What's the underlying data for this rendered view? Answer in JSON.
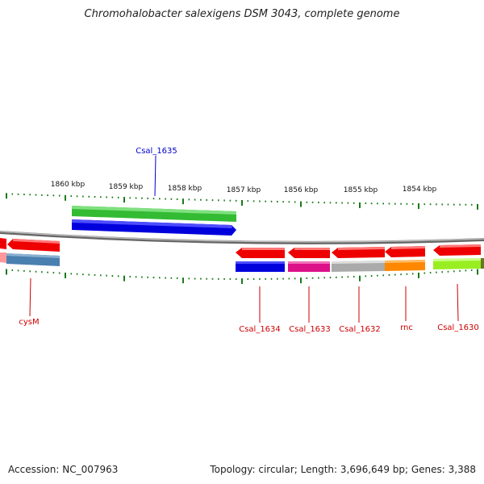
{
  "title": "Chromohalobacter salexigens DSM 3043, complete genome",
  "footer": {
    "accession": "Accession: NC_007963",
    "topology": "Topology: circular; Length: 3,696,649 bp; Genes: 3,388"
  },
  "colors": {
    "tick": "#1a7a1a",
    "backbone": "#888888",
    "top_label": "#0000cc",
    "bottom_label": "#cc0000"
  },
  "scale_labels": [
    "1860 kbp",
    "1859 kbp",
    "1858 kbp",
    "1857 kbp",
    "1856 kbp",
    "1855 kbp",
    "1854 kbp"
  ],
  "gene_labels": {
    "top": [
      {
        "text": "Csal_1635"
      }
    ],
    "bottom": [
      {
        "text": "cysM"
      },
      {
        "text": "Csal_1634"
      },
      {
        "text": "Csal_1633"
      },
      {
        "text": "Csal_1632"
      },
      {
        "text": "rnc"
      },
      {
        "text": "Csal_1630"
      }
    ]
  },
  "features": [
    {
      "label": "Csal_1635",
      "strand": "+",
      "color": "#33bb33"
    },
    {
      "label": "Csal_1635",
      "strand": "+",
      "color": "#0000dd"
    },
    {
      "label": "cysM",
      "strand": "-",
      "color": "#ee0000"
    },
    {
      "label": "cysM",
      "strand": "-",
      "color": "#4a80b0"
    },
    {
      "label": "Csal_1634",
      "strand": "-",
      "color": "#ee0000"
    },
    {
      "label": "Csal_1634",
      "strand": "-",
      "color": "#0000dd"
    },
    {
      "label": "Csal_1633",
      "strand": "-",
      "color": "#ee0000"
    },
    {
      "label": "Csal_1633",
      "strand": "-",
      "color": "#dd1188"
    },
    {
      "label": "Csal_1632",
      "strand": "-",
      "color": "#ee0000"
    },
    {
      "label": "Csal_1632",
      "strand": "-",
      "color": "#aaaaaa"
    },
    {
      "label": "rnc",
      "strand": "-",
      "color": "#ee0000"
    },
    {
      "label": "rnc",
      "strand": "-",
      "color": "#ff8800"
    },
    {
      "label": "Csal_1630",
      "strand": "-",
      "color": "#ee0000"
    },
    {
      "label": "Csal_1630",
      "strand": "-",
      "color": "#99ee22"
    }
  ]
}
